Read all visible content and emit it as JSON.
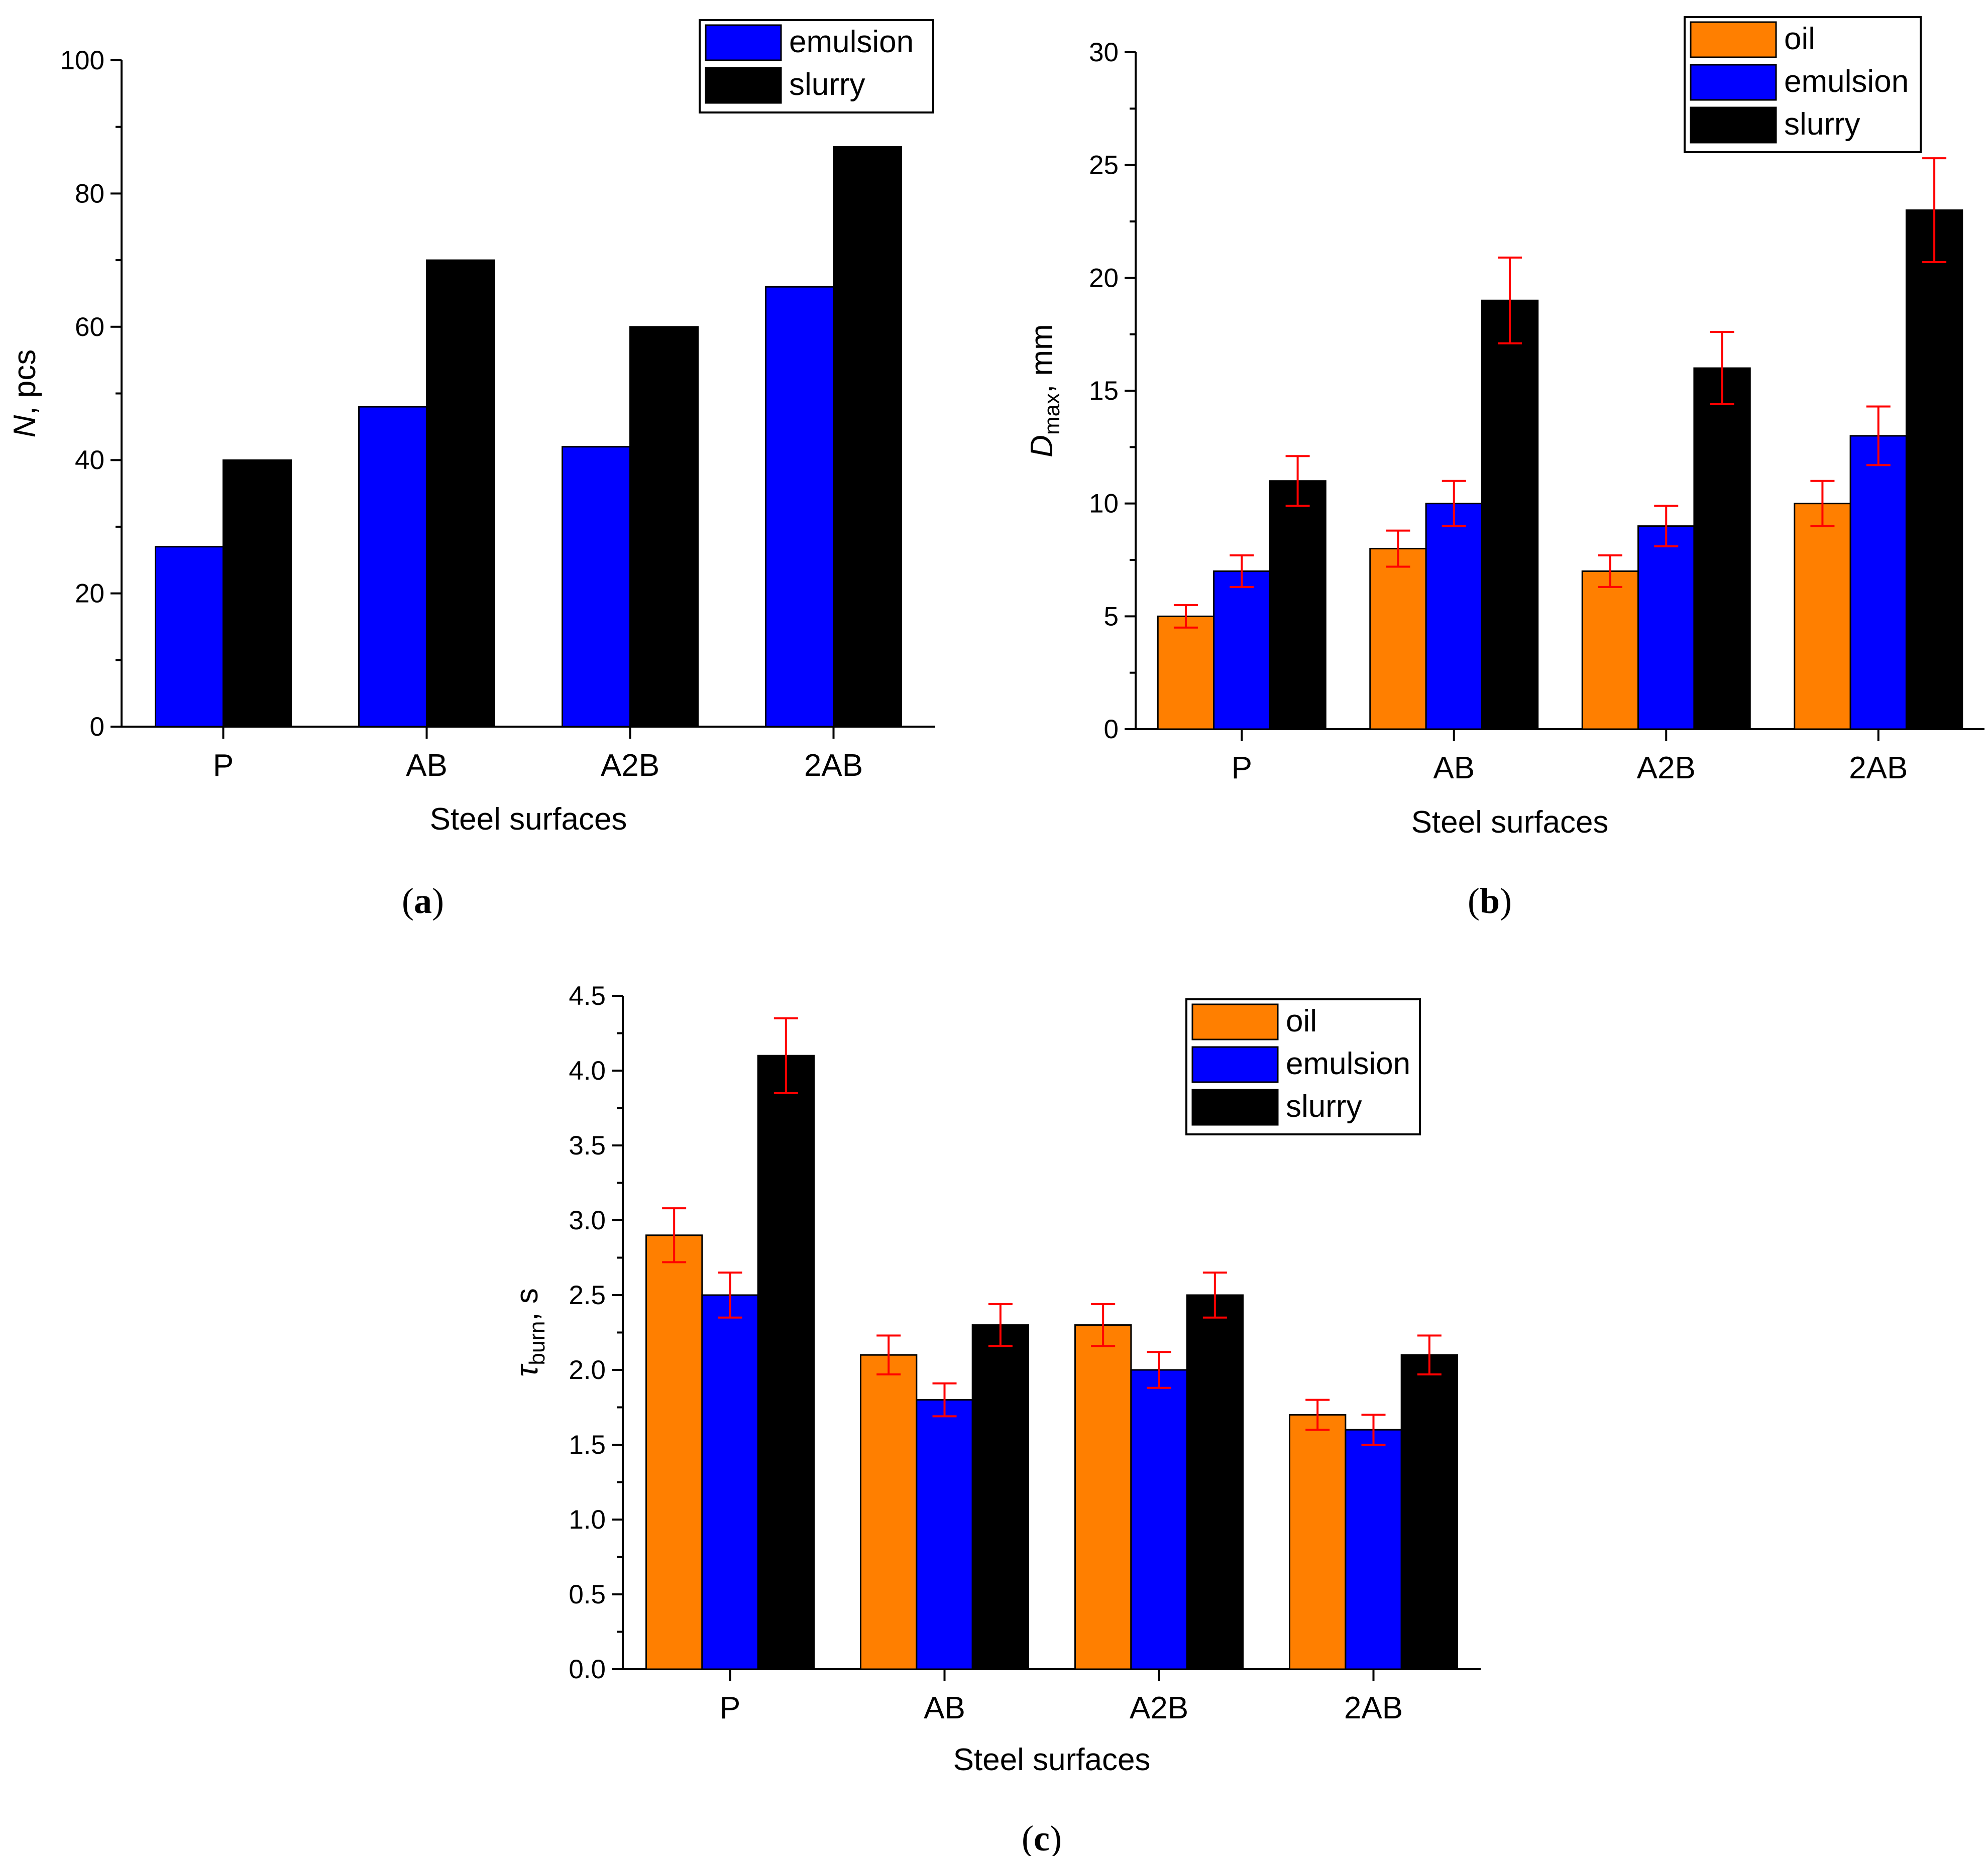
{
  "colors": {
    "oil": "#ff7f00",
    "emulsion": "#0000ff",
    "slurry": "#000000",
    "error_bar": "#ff0000"
  },
  "chart_data": [
    {
      "id": "a",
      "type": "bar",
      "panel_label": "a",
      "categories": [
        "P",
        "AB",
        "A2B",
        "2AB"
      ],
      "xlabel": "Steel surfaces",
      "ylabel": {
        "symbol": "N",
        "sub": "",
        "rest": ", pcs"
      },
      "ylim": [
        0,
        100
      ],
      "yticks": [
        0,
        20,
        40,
        60,
        80,
        100
      ],
      "ytick_labels": [
        "0",
        "20",
        "40",
        "60",
        "80",
        "100"
      ],
      "legend": "top-right",
      "series": [
        {
          "name": "emulsion",
          "color_key": "emulsion",
          "values": [
            27,
            48,
            42,
            66
          ],
          "errors": null
        },
        {
          "name": "slurry",
          "color_key": "slurry",
          "values": [
            40,
            70,
            60,
            87
          ],
          "errors": null
        }
      ]
    },
    {
      "id": "b",
      "type": "bar",
      "panel_label": "b",
      "categories": [
        "P",
        "AB",
        "A2B",
        "2AB"
      ],
      "xlabel": "Steel surfaces",
      "ylabel": {
        "symbol": "D",
        "sub": "max",
        "rest": ", mm"
      },
      "ylim": [
        0,
        30
      ],
      "yticks": [
        0,
        5,
        10,
        15,
        20,
        25,
        30
      ],
      "ytick_labels": [
        "0",
        "5",
        "10",
        "15",
        "20",
        "25",
        "30"
      ],
      "legend": "top-right",
      "series": [
        {
          "name": "oil",
          "color_key": "oil",
          "values": [
            5,
            8,
            7,
            10
          ],
          "errors": [
            0.5,
            0.8,
            0.7,
            1.0
          ]
        },
        {
          "name": "emulsion",
          "color_key": "emulsion",
          "values": [
            7,
            10,
            9,
            13
          ],
          "errors": [
            0.7,
            1.0,
            0.9,
            1.3
          ]
        },
        {
          "name": "slurry",
          "color_key": "slurry",
          "values": [
            11,
            19,
            16,
            23
          ],
          "errors": [
            1.1,
            1.9,
            1.6,
            2.3
          ]
        }
      ]
    },
    {
      "id": "c",
      "type": "bar",
      "panel_label": "c",
      "categories": [
        "P",
        "AB",
        "A2B",
        "2AB"
      ],
      "xlabel": "Steel surfaces",
      "ylabel": {
        "symbol": "τ",
        "sub": "burn",
        "rest": ", s"
      },
      "ylim": [
        0,
        4.5
      ],
      "yticks": [
        0,
        0.5,
        1.0,
        1.5,
        2.0,
        2.5,
        3.0,
        3.5,
        4.0,
        4.5
      ],
      "ytick_labels": [
        "0.0",
        "0.5",
        "1.0",
        "1.5",
        "2.0",
        "2.5",
        "3.0",
        "3.5",
        "4.0",
        "4.5"
      ],
      "legend": "top-right",
      "series": [
        {
          "name": "oil",
          "color_key": "oil",
          "values": [
            2.9,
            2.1,
            2.3,
            1.7
          ],
          "errors": [
            0.18,
            0.13,
            0.14,
            0.1
          ]
        },
        {
          "name": "emulsion",
          "color_key": "emulsion",
          "values": [
            2.5,
            1.8,
            2.0,
            1.6
          ],
          "errors": [
            0.15,
            0.11,
            0.12,
            0.1
          ]
        },
        {
          "name": "slurry",
          "color_key": "slurry",
          "values": [
            4.1,
            2.3,
            2.5,
            2.1
          ],
          "errors": [
            0.25,
            0.14,
            0.15,
            0.13
          ]
        }
      ]
    }
  ]
}
